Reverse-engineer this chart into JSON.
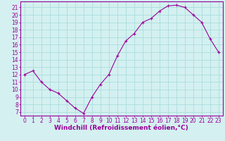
{
  "x": [
    0,
    1,
    2,
    3,
    4,
    5,
    6,
    7,
    8,
    9,
    10,
    11,
    12,
    13,
    14,
    15,
    16,
    17,
    18,
    19,
    20,
    21,
    22,
    23
  ],
  "y": [
    12,
    12.5,
    11,
    10,
    9.5,
    8.5,
    7.5,
    6.8,
    9,
    10.7,
    12,
    14.5,
    16.5,
    17.5,
    19,
    19.5,
    20.5,
    21.2,
    21.3,
    21,
    20,
    19,
    16.8,
    15
  ],
  "line_color": "#990099",
  "marker": "+",
  "marker_size": 3,
  "marker_linewidth": 0.8,
  "bg_color": "#d4f0f0",
  "grid_color": "#aadddd",
  "xlabel": "Windchill (Refroidissement éolien,°C)",
  "xlabel_color": "#990099",
  "ylim": [
    6.5,
    21.8
  ],
  "xlim": [
    -0.5,
    23.5
  ],
  "yticks": [
    7,
    8,
    9,
    10,
    11,
    12,
    13,
    14,
    15,
    16,
    17,
    18,
    19,
    20,
    21
  ],
  "xticks": [
    0,
    1,
    2,
    3,
    4,
    5,
    6,
    7,
    8,
    9,
    10,
    11,
    12,
    13,
    14,
    15,
    16,
    17,
    18,
    19,
    20,
    21,
    22,
    23
  ],
  "tick_color": "#990099",
  "tick_fontsize": 5.5,
  "xlabel_fontsize": 6.5,
  "border_color": "#990099",
  "linewidth": 0.8
}
